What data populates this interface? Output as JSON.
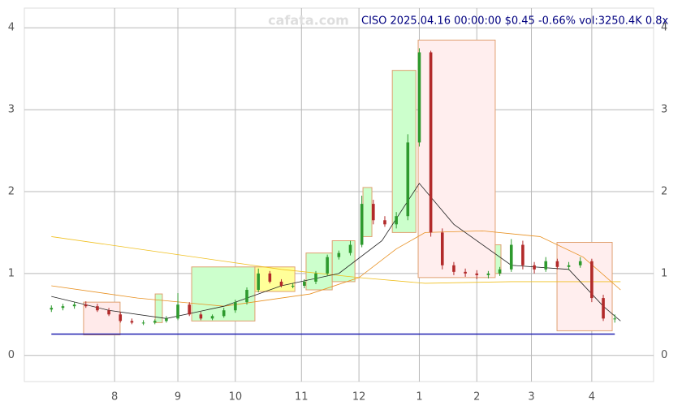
{
  "chart_data": {
    "type": "candlestick",
    "title": "CISO 2025.04.16 00:00:00 $0.45 -0.66% vol:3250.4K 0.8x",
    "watermark": "cafata.com",
    "xlim": [
      -9.4,
      209.5
    ],
    "xticks": [
      {
        "value": 22,
        "label": "8"
      },
      {
        "value": 44,
        "label": "9"
      },
      {
        "value": 64,
        "label": "10"
      },
      {
        "value": 87,
        "label": "11"
      },
      {
        "value": 107,
        "label": "12"
      },
      {
        "value": 128,
        "label": "1"
      },
      {
        "value": 148,
        "label": "2"
      },
      {
        "value": 167,
        "label": "3"
      },
      {
        "value": 188,
        "label": "4"
      }
    ],
    "ylim": [
      -0.32,
      4.24
    ],
    "yticks": [
      0,
      1,
      2,
      3,
      4
    ],
    "grid": true,
    "up_color": "#2e9a2e",
    "down_color": "#b22a2a",
    "x": [
      0,
      4,
      8,
      12,
      16,
      20,
      24,
      28,
      32,
      36,
      40,
      44,
      48,
      52,
      56,
      60,
      64,
      68,
      72,
      76,
      80,
      84,
      88,
      92,
      96,
      100,
      104,
      108,
      112,
      116,
      120,
      124,
      128,
      132,
      136,
      140,
      144,
      148,
      152,
      156,
      160,
      164,
      168,
      172,
      176,
      180,
      184,
      188,
      192,
      196
    ],
    "open": [
      0.56,
      0.58,
      0.6,
      0.62,
      0.6,
      0.55,
      0.5,
      0.42,
      0.4,
      0.4,
      0.42,
      0.45,
      0.62,
      0.5,
      0.45,
      0.48,
      0.55,
      0.65,
      0.8,
      1.0,
      0.9,
      0.85,
      0.85,
      0.9,
      1.0,
      1.2,
      1.25,
      1.35,
      1.85,
      1.65,
      1.6,
      1.7,
      2.6,
      3.7,
      1.5,
      1.1,
      1.02,
      1.0,
      0.98,
      1.0,
      1.05,
      1.35,
      1.1,
      1.05,
      1.15,
      1.08,
      1.1,
      1.15,
      0.7,
      0.45
    ],
    "high": [
      0.61,
      0.63,
      0.65,
      0.66,
      0.63,
      0.58,
      0.53,
      0.45,
      0.43,
      0.44,
      0.48,
      0.76,
      0.65,
      0.53,
      0.5,
      0.58,
      0.68,
      0.83,
      1.06,
      1.03,
      0.93,
      0.88,
      0.93,
      1.03,
      1.23,
      1.28,
      1.4,
      1.95,
      1.9,
      1.7,
      1.75,
      2.7,
      3.75,
      3.72,
      1.55,
      1.14,
      1.06,
      1.04,
      1.03,
      1.08,
      1.42,
      1.4,
      1.14,
      1.2,
      1.18,
      1.14,
      1.2,
      1.18,
      0.74,
      0.5
    ],
    "low": [
      0.53,
      0.55,
      0.57,
      0.58,
      0.53,
      0.48,
      0.4,
      0.38,
      0.37,
      0.38,
      0.4,
      0.43,
      0.48,
      0.43,
      0.43,
      0.46,
      0.52,
      0.62,
      0.77,
      0.88,
      0.83,
      0.82,
      0.82,
      0.87,
      0.97,
      1.17,
      1.22,
      1.32,
      1.6,
      1.57,
      1.55,
      1.65,
      2.55,
      1.45,
      1.05,
      0.98,
      0.96,
      0.93,
      0.94,
      0.97,
      1.02,
      1.05,
      1.0,
      1.02,
      1.05,
      1.04,
      1.07,
      0.65,
      0.42,
      0.4
    ],
    "close": [
      0.58,
      0.6,
      0.62,
      0.6,
      0.55,
      0.5,
      0.42,
      0.4,
      0.4,
      0.42,
      0.45,
      0.62,
      0.5,
      0.45,
      0.48,
      0.55,
      0.65,
      0.8,
      1.0,
      0.9,
      0.85,
      0.85,
      0.9,
      1.0,
      1.2,
      1.25,
      1.35,
      1.85,
      1.65,
      1.6,
      1.7,
      2.6,
      3.7,
      1.5,
      1.1,
      1.02,
      1.0,
      0.98,
      1.0,
      1.05,
      1.35,
      1.1,
      1.05,
      1.15,
      1.08,
      1.1,
      1.15,
      0.7,
      0.45,
      0.45
    ],
    "series": [
      {
        "color": "#f0c020",
        "x": [
          0,
          40,
          80,
          107,
          130,
          160,
          198
        ],
        "values": [
          1.45,
          1.25,
          1.05,
          0.95,
          0.88,
          0.9,
          0.9
        ]
      },
      {
        "color": "#e89020",
        "x": [
          0,
          30,
          60,
          90,
          107,
          120,
          130,
          150,
          170,
          185,
          198
        ],
        "values": [
          0.85,
          0.7,
          0.6,
          0.75,
          0.95,
          1.3,
          1.5,
          1.52,
          1.45,
          1.2,
          0.8
        ]
      },
      {
        "color": "#222222",
        "x": [
          0,
          20,
          40,
          60,
          80,
          100,
          115,
          128,
          140,
          160,
          180,
          192,
          198
        ],
        "values": [
          0.72,
          0.55,
          0.45,
          0.6,
          0.85,
          1.0,
          1.4,
          2.1,
          1.6,
          1.1,
          1.05,
          0.6,
          0.42
        ]
      }
    ],
    "ranges": [
      {
        "x0": 11.2,
        "x1": 23.9,
        "low": 0.25,
        "high": 0.65,
        "color": "#ffeaea"
      },
      {
        "x0": 36.1,
        "x1": 38.6,
        "low": 0.4,
        "high": 0.75,
        "color": "#ccffcc"
      },
      {
        "x0": 48.8,
        "x1": 70.8,
        "low": 0.42,
        "high": 1.08,
        "color": "#ccffcc"
      },
      {
        "x0": 70.8,
        "x1": 84.7,
        "low": 0.78,
        "high": 1.08,
        "color": "#ffff99"
      },
      {
        "x0": 88.6,
        "x1": 97.7,
        "low": 0.8,
        "high": 1.25,
        "color": "#ccffcc"
      },
      {
        "x0": 97.7,
        "x1": 105.6,
        "low": 0.9,
        "high": 1.4,
        "color": "#ccffcc"
      },
      {
        "x0": 108.4,
        "x1": 111.5,
        "low": 1.45,
        "high": 2.05,
        "color": "#ccffcc"
      },
      {
        "x0": 118.6,
        "x1": 126.8,
        "low": 1.5,
        "high": 3.48,
        "color": "#ccffcc"
      },
      {
        "x0": 127.6,
        "x1": 154.4,
        "low": 0.95,
        "high": 3.85,
        "color": "#ffeeee"
      },
      {
        "x0": 154.4,
        "x1": 156.4,
        "low": 1.0,
        "high": 1.35,
        "color": "#ccffcc"
      },
      {
        "x0": 175.9,
        "x1": 195.1,
        "low": 0.3,
        "high": 1.38,
        "color": "#ffeeee"
      }
    ],
    "support_line": {
      "value": 0.26,
      "color": "#2020b0"
    }
  }
}
